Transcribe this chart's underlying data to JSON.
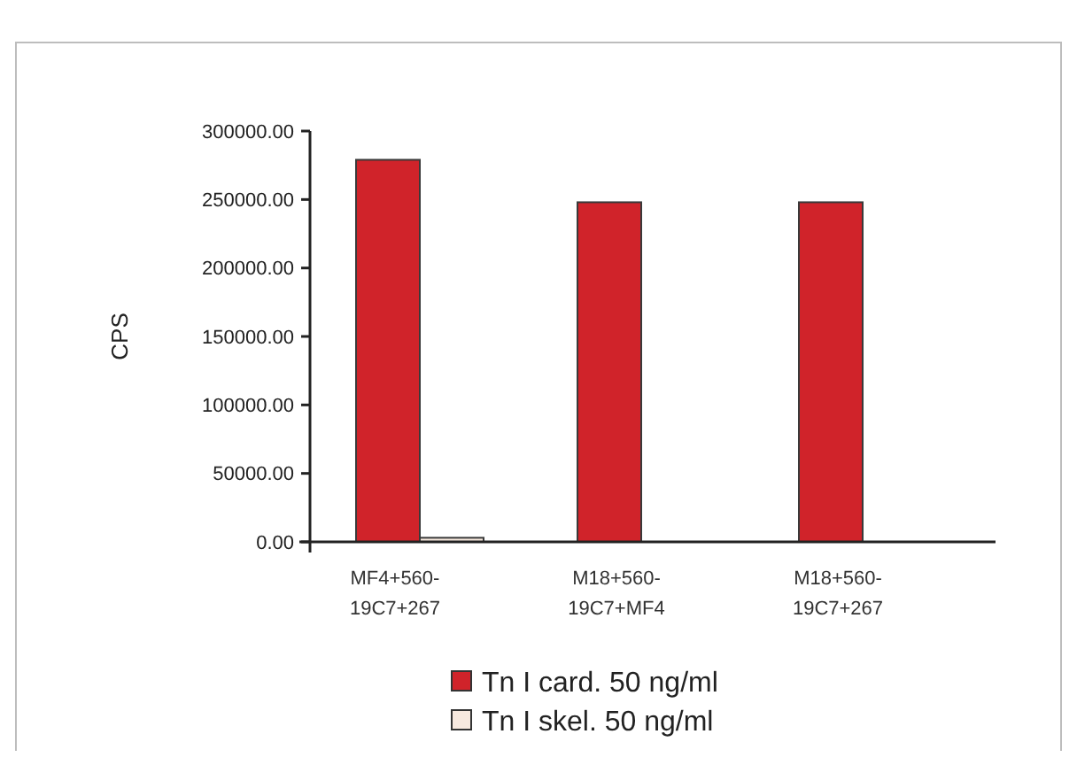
{
  "chart_data": {
    "type": "bar",
    "ylabel": "CPS",
    "categories": [
      "MF4+560-\n19C7+267",
      "M18+560-\n19C7+MF4",
      "M18+560-\n19C7+267"
    ],
    "series": [
      {
        "name": "Tn I card. 50 ng/ml",
        "color": "#d0232a",
        "values": [
          279000,
          248000,
          248000
        ]
      },
      {
        "name": "Tn I skel. 50 ng/ml",
        "color": "#f7e9df",
        "values": [
          3000,
          0,
          0
        ]
      }
    ],
    "ylim": [
      0,
      300000
    ],
    "yticks": [
      {
        "value": 0,
        "label": "0.00"
      },
      {
        "value": 50000,
        "label": "50000.00"
      },
      {
        "value": 100000,
        "label": "100000.00"
      },
      {
        "value": 150000,
        "label": "150000.00"
      },
      {
        "value": 200000,
        "label": "200000.00"
      },
      {
        "value": 250000,
        "label": "250000.00"
      },
      {
        "value": 300000,
        "label": "300000.00"
      }
    ],
    "grid": false,
    "legend": "bottom"
  }
}
